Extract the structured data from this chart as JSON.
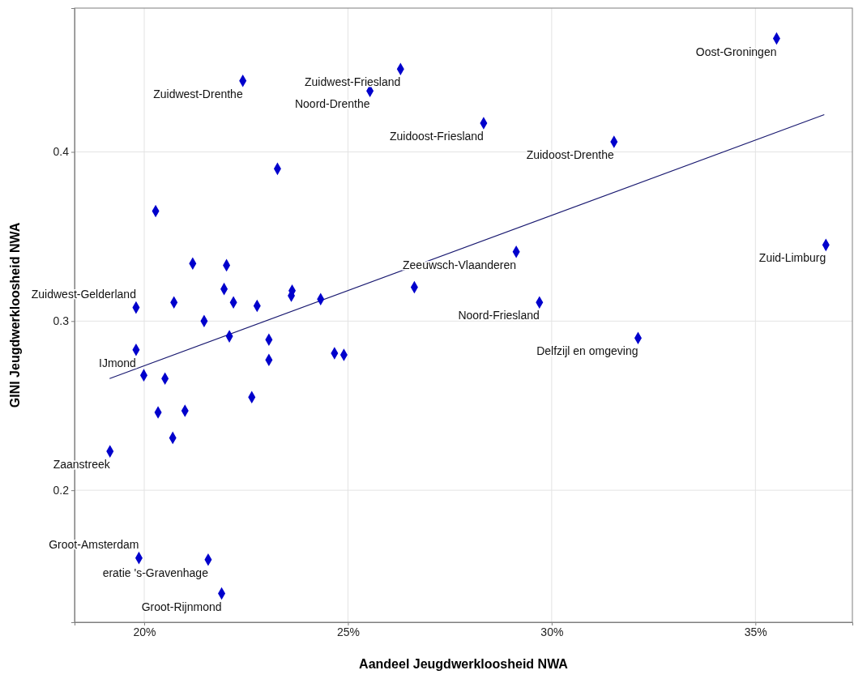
{
  "chart_data": {
    "type": "scatter",
    "xlabel": "Aandeel Jeugdwerkloosheid NWA",
    "ylabel": "GINI Jeugdwerkloosheid NWA",
    "xlim": [
      18.29,
      37.38
    ],
    "ylim": [
      0.122,
      0.485
    ],
    "xticks": [
      {
        "value": 20,
        "label": "20%"
      },
      {
        "value": 25,
        "label": "25%"
      },
      {
        "value": 30,
        "label": "30%"
      },
      {
        "value": 35,
        "label": "35%"
      }
    ],
    "yticks": [
      0.2,
      0.3,
      0.4
    ],
    "grid": true,
    "series": [
      {
        "color": "#0000cc",
        "marker": "diamond",
        "x": [
          35.52,
          26.29,
          22.42,
          25.54,
          28.33,
          31.53,
          23.27,
          20.28,
          21.19,
          22.02,
          29.13,
          36.73,
          26.63,
          29.7,
          32.12,
          21.96,
          19.8,
          20.73,
          22.19,
          22.77,
          23.63,
          23.61,
          24.33,
          21.47,
          19.8,
          22.09,
          23.06,
          23.06,
          24.67,
          24.9,
          19.99,
          20.51,
          22.64,
          20.34,
          21.0,
          20.7,
          19.16,
          21.57,
          19.87,
          21.9
        ],
        "values": [
          0.467,
          0.449,
          0.442,
          0.436,
          0.417,
          0.406,
          0.39,
          0.365,
          0.334,
          0.333,
          0.341,
          0.345,
          0.32,
          0.311,
          0.29,
          0.319,
          0.308,
          0.311,
          0.311,
          0.309,
          0.318,
          0.315,
          0.313,
          0.3,
          0.283,
          0.291,
          0.289,
          0.277,
          0.281,
          0.28,
          0.268,
          0.266,
          0.255,
          0.246,
          0.247,
          0.231,
          0.223,
          0.159,
          0.16,
          0.139
        ]
      },
      {
        "type": "line",
        "color": "#191970",
        "line_style": "solid",
        "marker": "none",
        "x": [
          19.15,
          36.69
        ],
        "values": [
          0.266,
          0.422
        ]
      }
    ],
    "annotations": [
      {
        "text": "Oost-Groningen",
        "x": 35.52,
        "y": 0.467
      },
      {
        "text": "Zuidwest-Friesland",
        "x": 26.29,
        "y": 0.449
      },
      {
        "text": "Zuidwest-Drenthe",
        "x": 22.42,
        "y": 0.442
      },
      {
        "text": "Noord-Drenthe",
        "x": 25.54,
        "y": 0.436
      },
      {
        "text": "Zuidoost-Friesland",
        "x": 28.33,
        "y": 0.417
      },
      {
        "text": "Zuidoost-Drenthe",
        "x": 31.53,
        "y": 0.406
      },
      {
        "text": "Zeeuwsch-Vlaanderen",
        "x": 29.13,
        "y": 0.341
      },
      {
        "text": "Zuid-Limburg",
        "x": 36.73,
        "y": 0.345
      },
      {
        "text": "Noord-Friesland",
        "x": 29.7,
        "y": 0.311
      },
      {
        "text": "Delfzijl en omgeving",
        "x": 32.12,
        "y": 0.29
      },
      {
        "text": "Zuidwest-Gelderland",
        "x": 19.8,
        "y": 0.308
      },
      {
        "text": "IJmond",
        "x": 19.8,
        "y": 0.283
      },
      {
        "text": "Zaanstreek",
        "x": 19.16,
        "y": 0.223
      },
      {
        "text": "eratie 's-Gravenhage",
        "x": 21.57,
        "y": 0.159
      },
      {
        "text": "Groot-Amsterdam",
        "x": 19.87,
        "y": 0.16
      },
      {
        "text": "Groot-Rijnmond",
        "x": 21.9,
        "y": 0.139
      }
    ]
  }
}
